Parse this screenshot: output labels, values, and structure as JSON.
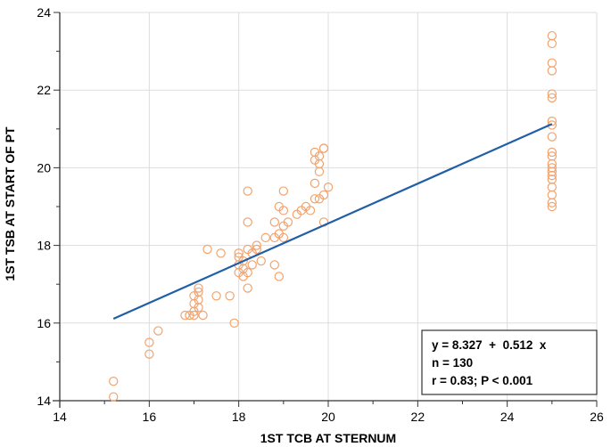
{
  "chart_data": {
    "type": "scatter",
    "title": "",
    "xlabel": "1ST TCB AT STERNUM",
    "ylabel": "1ST TSB AT START OF PT",
    "xlim": [
      14,
      26
    ],
    "ylim": [
      14,
      24
    ],
    "xticks": [
      "14",
      "16",
      "18",
      "20",
      "22",
      "24",
      "26"
    ],
    "yticks": [
      "14",
      "16",
      "18",
      "20",
      "22",
      "24"
    ],
    "grid": true,
    "legend": "none",
    "colors": {
      "points": "#F2A36E",
      "line": "#1F5FA8",
      "grid": "#DDDDDD",
      "axis": "#333333"
    },
    "regression": {
      "intercept": 8.327,
      "slope": 0.512,
      "x_start": 15.2,
      "x_end": 25
    },
    "stats": {
      "equation": "y = 8.327  +  0.512  x",
      "n": "n = 130",
      "r": "r = 0.83; P < 0.001"
    },
    "points": [
      [
        15.2,
        14.5
      ],
      [
        15.2,
        14.1
      ],
      [
        16.0,
        15.5
      ],
      [
        16.0,
        15.2
      ],
      [
        16.2,
        15.8
      ],
      [
        16.8,
        16.2
      ],
      [
        16.9,
        16.2
      ],
      [
        17.0,
        16.3
      ],
      [
        17.0,
        16.5
      ],
      [
        17.0,
        16.7
      ],
      [
        17.1,
        16.4
      ],
      [
        17.1,
        16.6
      ],
      [
        17.1,
        16.8
      ],
      [
        17.1,
        16.9
      ],
      [
        17.0,
        16.2
      ],
      [
        17.2,
        16.2
      ],
      [
        17.3,
        17.9
      ],
      [
        17.5,
        16.7
      ],
      [
        17.6,
        17.8
      ],
      [
        17.8,
        16.7
      ],
      [
        17.9,
        16.0
      ],
      [
        18.0,
        17.3
      ],
      [
        18.0,
        17.5
      ],
      [
        18.0,
        17.7
      ],
      [
        18.0,
        17.8
      ],
      [
        18.1,
        17.2
      ],
      [
        18.1,
        17.4
      ],
      [
        18.1,
        17.6
      ],
      [
        18.2,
        17.3
      ],
      [
        18.2,
        17.9
      ],
      [
        18.2,
        18.6
      ],
      [
        18.2,
        19.4
      ],
      [
        18.2,
        16.9
      ],
      [
        18.3,
        17.5
      ],
      [
        18.3,
        17.8
      ],
      [
        18.4,
        17.9
      ],
      [
        18.4,
        18.0
      ],
      [
        18.5,
        17.6
      ],
      [
        18.6,
        18.2
      ],
      [
        18.8,
        18.2
      ],
      [
        18.8,
        17.5
      ],
      [
        18.8,
        18.6
      ],
      [
        18.9,
        17.2
      ],
      [
        18.9,
        18.3
      ],
      [
        18.9,
        19.0
      ],
      [
        19.0,
        18.2
      ],
      [
        19.0,
        18.5
      ],
      [
        19.0,
        18.9
      ],
      [
        19.0,
        19.4
      ],
      [
        19.1,
        18.6
      ],
      [
        19.3,
        18.8
      ],
      [
        19.4,
        18.9
      ],
      [
        19.5,
        19.0
      ],
      [
        19.6,
        18.9
      ],
      [
        19.7,
        19.2
      ],
      [
        19.7,
        19.6
      ],
      [
        19.7,
        20.2
      ],
      [
        19.7,
        20.4
      ],
      [
        19.8,
        19.2
      ],
      [
        19.8,
        19.9
      ],
      [
        19.8,
        20.1
      ],
      [
        19.8,
        20.3
      ],
      [
        19.9,
        19.3
      ],
      [
        19.9,
        20.5
      ],
      [
        19.9,
        18.6
      ],
      [
        20.0,
        19.5
      ],
      [
        19.9,
        20.5
      ],
      [
        25.0,
        23.4
      ],
      [
        25.0,
        23.2
      ],
      [
        25.0,
        22.7
      ],
      [
        25.0,
        22.5
      ],
      [
        25.0,
        21.9
      ],
      [
        25.0,
        21.8
      ],
      [
        25.0,
        21.2
      ],
      [
        25.0,
        21.1
      ],
      [
        25.0,
        20.8
      ],
      [
        25.0,
        20.4
      ],
      [
        25.0,
        20.3
      ],
      [
        25.0,
        20.1
      ],
      [
        25.0,
        20.0
      ],
      [
        25.0,
        19.9
      ],
      [
        25.0,
        19.8
      ],
      [
        25.0,
        19.7
      ],
      [
        25.0,
        19.5
      ],
      [
        25.0,
        19.3
      ],
      [
        25.0,
        19.1
      ],
      [
        25.0,
        19.0
      ]
    ]
  }
}
